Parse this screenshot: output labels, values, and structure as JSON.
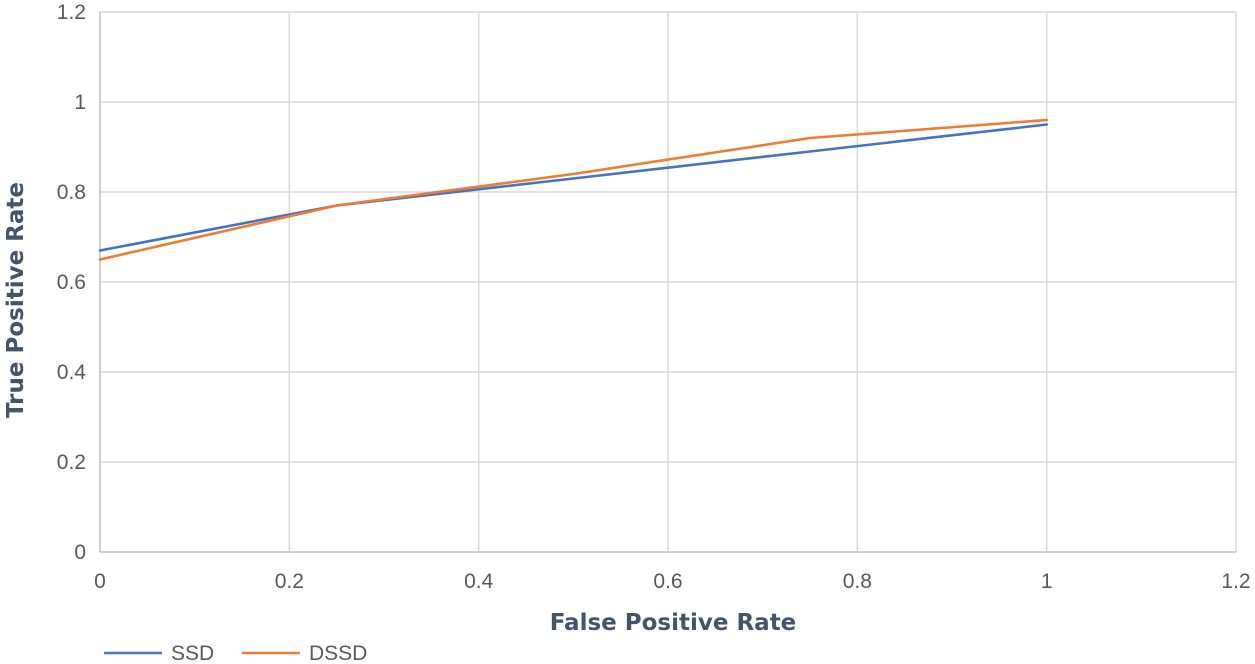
{
  "chart_data": {
    "type": "line",
    "title": "",
    "xlabel": "False Positive Rate",
    "ylabel": "True Positive Rate",
    "xlim": [
      0,
      1.2
    ],
    "ylim": [
      0,
      1.2
    ],
    "x_ticks": [
      "0",
      "0.2",
      "0.4",
      "0.6",
      "0.8",
      "1",
      "1.2"
    ],
    "y_ticks": [
      "0",
      "0.2",
      "0.4",
      "0.6",
      "0.8",
      "1",
      "1.2"
    ],
    "grid": true,
    "legend_position": "bottom-left",
    "series": [
      {
        "name": "SSD",
        "color": "#4472c4",
        "x": [
          0,
          0.25,
          0.5,
          0.75,
          1
        ],
        "y": [
          0.67,
          0.77,
          0.83,
          0.89,
          0.95
        ]
      },
      {
        "name": "DSSD",
        "color": "#ed7d31",
        "x": [
          0,
          0.25,
          0.5,
          0.75,
          1
        ],
        "y": [
          0.65,
          0.77,
          0.84,
          0.92,
          0.96
        ]
      }
    ]
  }
}
